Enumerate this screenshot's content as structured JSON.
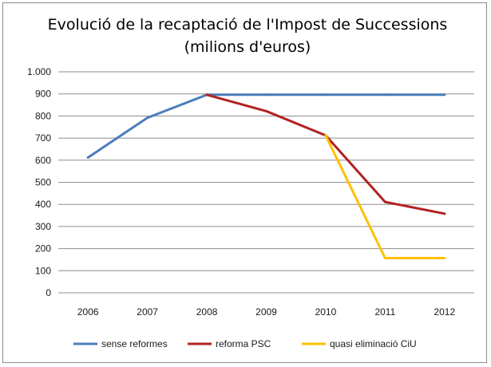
{
  "chart_data": {
    "type": "line",
    "title": "Evolució de la recaptació de l'Impost de Successions",
    "subtitle": "(milions d'euros)",
    "xlabel": "",
    "ylabel": "",
    "categories": [
      "2006",
      "2007",
      "2008",
      "2009",
      "2010",
      "2011",
      "2012"
    ],
    "ylim": [
      0,
      1000
    ],
    "yticks": [
      0,
      100,
      200,
      300,
      400,
      500,
      600,
      700,
      800,
      900,
      1000
    ],
    "ytick_labels": [
      "0",
      "100",
      "200",
      "300",
      "400",
      "500",
      "600",
      "700",
      "800",
      "900",
      "1.000"
    ],
    "grid": true,
    "legend_position": "bottom",
    "series": [
      {
        "name": "sense reformes",
        "color": "#4a7ebb",
        "values": [
          612,
          792,
          896,
          896,
          896,
          896,
          896
        ]
      },
      {
        "name": "reforma PSC",
        "color": "#b22222",
        "values": [
          null,
          null,
          896,
          822,
          712,
          411,
          358
        ]
      },
      {
        "name": "quasi eliminació CiU",
        "color": "#ffc000",
        "values": [
          null,
          null,
          null,
          null,
          712,
          157,
          157
        ]
      }
    ]
  }
}
